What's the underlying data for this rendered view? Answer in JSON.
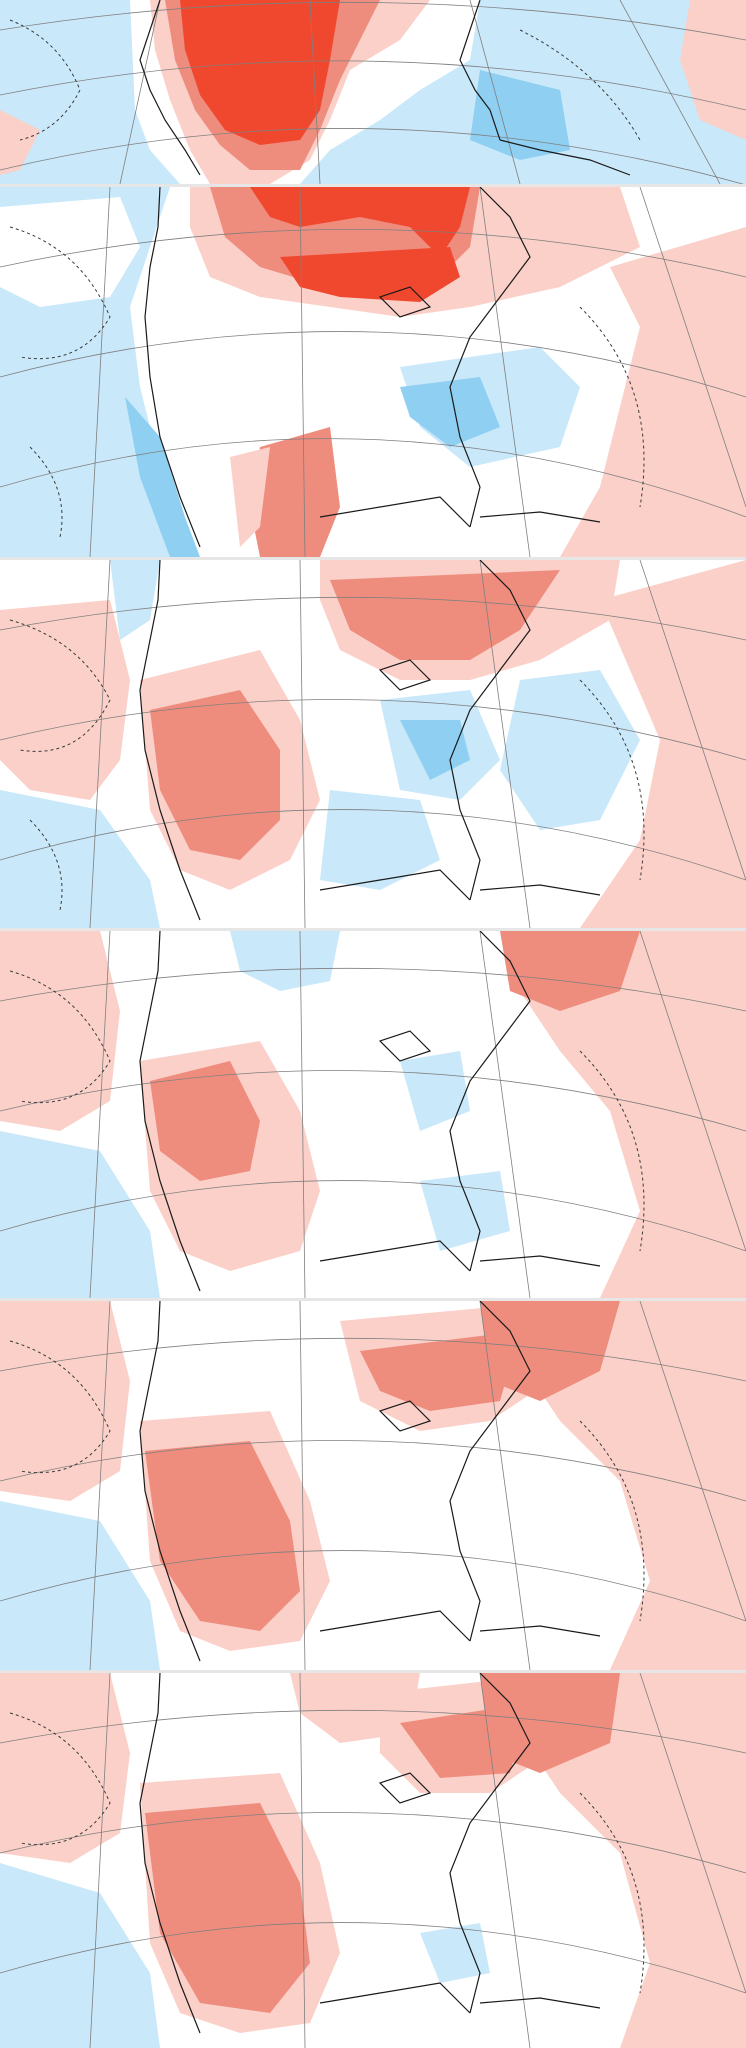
{
  "figure": {
    "description_free": true,
    "panel_count": 6,
    "colors": {
      "strong_warm": "#f0482e",
      "warm": "#ee8d7e",
      "light_warm": "#fbd0c8",
      "neutral": "#ffffff",
      "light_cool": "#c9e8fa",
      "cool": "#8ecff2",
      "coast": "#1a1a1a",
      "grid": "#7f7f7f",
      "contour": "#3a3a3a"
    },
    "panels": [
      {
        "id": "panel-1",
        "warm_strength": "strong"
      },
      {
        "id": "panel-2",
        "warm_strength": "strong"
      },
      {
        "id": "panel-3",
        "warm_strength": "moderate"
      },
      {
        "id": "panel-4",
        "warm_strength": "moderate"
      },
      {
        "id": "panel-5",
        "warm_strength": "moderate"
      },
      {
        "id": "panel-6",
        "warm_strength": "moderate"
      }
    ]
  }
}
